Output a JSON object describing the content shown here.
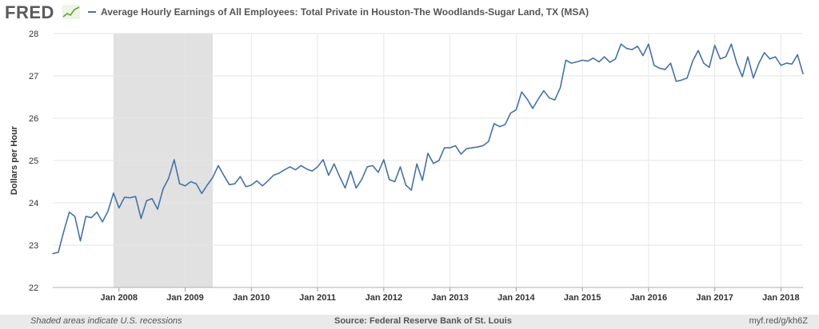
{
  "header": {
    "logo_text": "FRED",
    "logo_icon": "trend-line-icon",
    "legend_text": "Average Hourly Earnings of All Employees: Total Private in Houston-The Woodlands-Sugar Land, TX (MSA)",
    "series_color": "#4572a7"
  },
  "footer": {
    "recession_note": "Shaded areas indicate U.S. recessions",
    "source": "Source: Federal Reserve Bank of St. Louis",
    "short_url": "myf.red/g/kh6Z"
  },
  "chart_data": {
    "type": "line",
    "title": "Average Hourly Earnings of All Employees: Total Private in Houston-The Woodlands-Sugar Land, TX (MSA)",
    "ylabel": "Dollars per Hour",
    "xlabel": "",
    "ylim": [
      22,
      28
    ],
    "yticks": [
      "22",
      "23",
      "24",
      "25",
      "26",
      "27",
      "28"
    ],
    "xtick_labels": [
      "Jan 2008",
      "Jan 2009",
      "Jan 2010",
      "Jan 2011",
      "Jan 2012",
      "Jan 2013",
      "Jan 2014",
      "Jan 2015",
      "Jan 2016",
      "Jan 2017",
      "Jan 2018"
    ],
    "x_start": "2007-01",
    "x_end": "2018-05",
    "grid": true,
    "recession": {
      "start": "2007-12",
      "end": "2009-06",
      "color": "#e1e1e1"
    },
    "series": [
      {
        "name": "Average Hourly Earnings of All Employees: Total Private in Houston-The Woodlands-Sugar Land, TX (MSA)",
        "color": "#4572a7",
        "values": [
          22.8,
          22.83,
          23.33,
          23.78,
          23.68,
          23.1,
          23.68,
          23.65,
          23.78,
          23.55,
          23.8,
          24.23,
          23.88,
          24.13,
          24.12,
          24.15,
          23.63,
          24.05,
          24.1,
          23.85,
          24.33,
          24.58,
          25.02,
          24.45,
          24.4,
          24.5,
          24.45,
          24.22,
          24.42,
          24.6,
          24.88,
          24.65,
          24.43,
          24.45,
          24.62,
          24.38,
          24.42,
          24.52,
          24.4,
          24.52,
          24.65,
          24.7,
          24.78,
          24.85,
          24.78,
          24.88,
          24.8,
          24.75,
          24.85,
          25.02,
          24.65,
          24.92,
          24.62,
          24.35,
          24.75,
          24.35,
          24.55,
          24.85,
          24.88,
          24.72,
          25.02,
          24.55,
          24.5,
          24.85,
          24.42,
          24.3,
          24.92,
          24.53,
          25.17,
          24.93,
          25.0,
          25.3,
          25.3,
          25.35,
          25.15,
          25.28,
          25.3,
          25.32,
          25.35,
          25.45,
          25.87,
          25.8,
          25.85,
          26.12,
          26.2,
          26.62,
          26.45,
          26.23,
          26.45,
          26.65,
          26.48,
          26.43,
          26.72,
          27.37,
          27.3,
          27.33,
          27.37,
          27.35,
          27.42,
          27.33,
          27.45,
          27.32,
          27.4,
          27.75,
          27.65,
          27.62,
          27.7,
          27.48,
          27.75,
          27.25,
          27.18,
          27.15,
          27.3,
          26.87,
          26.9,
          26.95,
          27.35,
          27.6,
          27.3,
          27.2,
          27.72,
          27.4,
          27.45,
          27.75,
          27.3,
          26.98,
          27.45,
          26.95,
          27.3,
          27.55,
          27.4,
          27.45,
          27.25,
          27.3,
          27.28,
          27.5,
          27.05
        ]
      }
    ]
  }
}
